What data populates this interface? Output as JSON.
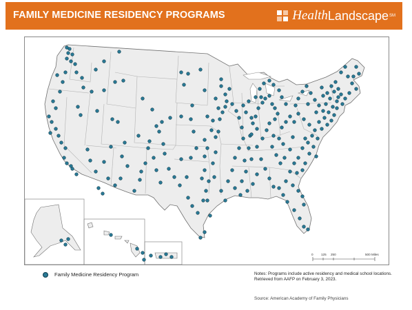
{
  "header": {
    "title": "FAMILY MEDICINE RESIDENCY PROGRAMS",
    "brand_health": "Health",
    "brand_landscape": "Landscape",
    "brand_mark": "SM",
    "banner_color": "#e2711d"
  },
  "legend": {
    "label": "Family Medicine Residency Program",
    "dot_color": "#2a7a96"
  },
  "scale_bar": {
    "ticks": [
      "0",
      "125",
      "250",
      "500 Miles"
    ]
  },
  "notes": {
    "text": "Notes: Programs include active residency and medical school locations. Retrieved from AAFP on February 3, 2023.",
    "source": "Source: American Academy of Family Physicians"
  }
}
